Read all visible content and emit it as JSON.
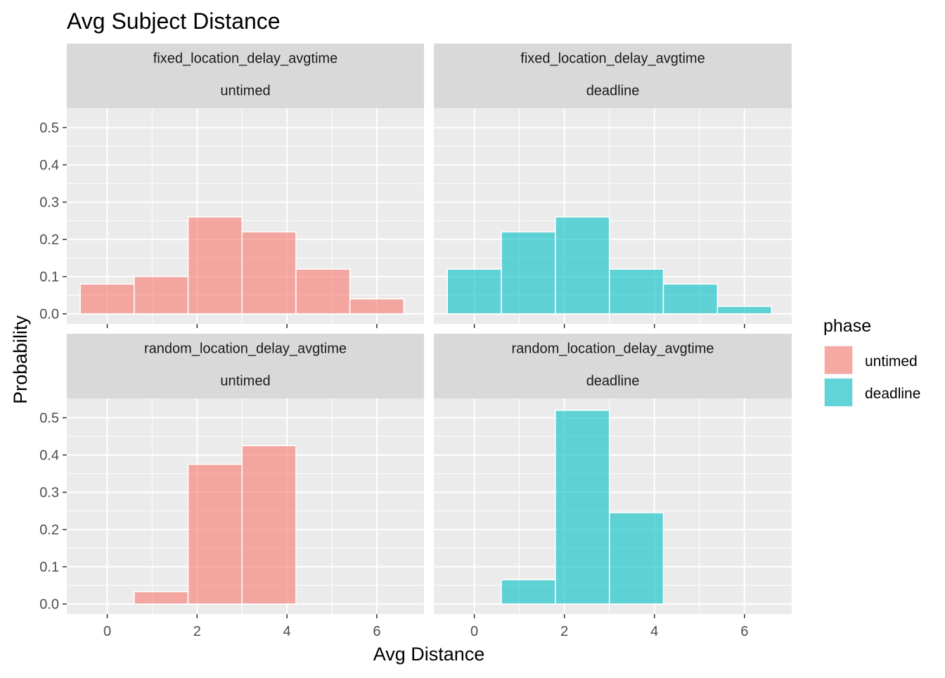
{
  "colors": {
    "untimed": "#F8766D",
    "deadline": "#00BFC4",
    "panel_bg": "#EBEBEB",
    "strip_bg": "#D9D9D9",
    "grid": "#FFFFFF",
    "tick_text": "#4D4D4D",
    "strip_text": "#1A1A1A",
    "title_text": "#000000"
  },
  "chart_data": {
    "type": "bar",
    "subtype": "faceted-histogram",
    "title": "Avg Subject Distance",
    "xlabel": "Avg Distance",
    "ylabel": "Probability",
    "xlim": [
      -0.9,
      7.05
    ],
    "ylim": [
      -0.027,
      0.552
    ],
    "x_ticks": [
      0,
      2,
      4,
      6
    ],
    "x_tick_labels": [
      "0",
      "2",
      "4",
      "6"
    ],
    "y_ticks": [
      0.0,
      0.1,
      0.2,
      0.3,
      0.4,
      0.5
    ],
    "y_tick_labels": [
      "0.0",
      "0.1",
      "0.2",
      "0.3",
      "0.4",
      "0.5"
    ],
    "bin_width": 1.2,
    "grid": true,
    "legend": {
      "title": "phase",
      "position": "right",
      "entries": [
        {
          "label": "untimed",
          "color": "#F8766D"
        },
        {
          "label": "deadline",
          "color": "#00BFC4"
        }
      ]
    },
    "panels": [
      {
        "strip": [
          "fixed_location_delay_avgtime",
          "untimed"
        ],
        "phase": "untimed",
        "bins": [
          {
            "x0": -0.6,
            "x1": 0.6,
            "value": 0.08
          },
          {
            "x0": 0.6,
            "x1": 1.8,
            "value": 0.1
          },
          {
            "x0": 1.8,
            "x1": 3.0,
            "value": 0.26
          },
          {
            "x0": 3.0,
            "x1": 4.2,
            "value": 0.22
          },
          {
            "x0": 4.2,
            "x1": 5.4,
            "value": 0.12
          },
          {
            "x0": 5.4,
            "x1": 6.6,
            "value": 0.04
          }
        ]
      },
      {
        "strip": [
          "fixed_location_delay_avgtime",
          "deadline"
        ],
        "phase": "deadline",
        "bins": [
          {
            "x0": -0.6,
            "x1": 0.6,
            "value": 0.12
          },
          {
            "x0": 0.6,
            "x1": 1.8,
            "value": 0.22
          },
          {
            "x0": 1.8,
            "x1": 3.0,
            "value": 0.26
          },
          {
            "x0": 3.0,
            "x1": 4.2,
            "value": 0.12
          },
          {
            "x0": 4.2,
            "x1": 5.4,
            "value": 0.08
          },
          {
            "x0": 5.4,
            "x1": 6.6,
            "value": 0.02
          }
        ]
      },
      {
        "strip": [
          "random_location_delay_avgtime",
          "untimed"
        ],
        "phase": "untimed",
        "bins": [
          {
            "x0": 0.6,
            "x1": 1.8,
            "value": 0.033
          },
          {
            "x0": 1.8,
            "x1": 3.0,
            "value": 0.375
          },
          {
            "x0": 3.0,
            "x1": 4.2,
            "value": 0.425
          }
        ]
      },
      {
        "strip": [
          "random_location_delay_avgtime",
          "deadline"
        ],
        "phase": "deadline",
        "bins": [
          {
            "x0": 0.6,
            "x1": 1.8,
            "value": 0.065
          },
          {
            "x0": 1.8,
            "x1": 3.0,
            "value": 0.52
          },
          {
            "x0": 3.0,
            "x1": 4.2,
            "value": 0.245
          }
        ]
      }
    ]
  }
}
